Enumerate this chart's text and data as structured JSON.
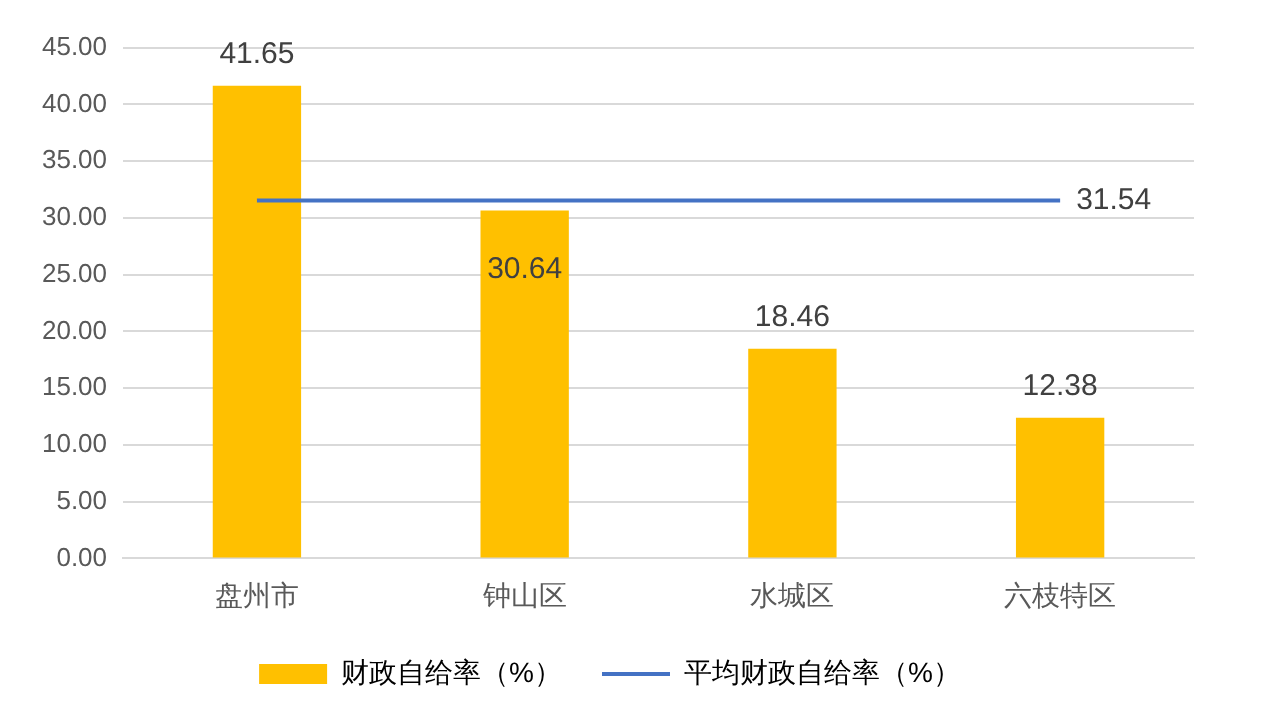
{
  "chart_data": {
    "type": "bar",
    "categories": [
      "盘州市",
      "钟山区",
      "水城区",
      "六枝特区"
    ],
    "series": [
      {
        "name": "财政自给率（%）",
        "color": "#ffc000",
        "values": [
          41.65,
          30.64,
          18.46,
          12.38
        ],
        "value_labels": [
          "41.65",
          "30.64",
          "18.46",
          "12.38"
        ]
      },
      {
        "name": "平均财政自给率（%）",
        "type": "line",
        "color": "#4472c4",
        "values": [
          31.54,
          31.54,
          31.54,
          31.54
        ],
        "value_labels": [
          null,
          null,
          null,
          "31.54"
        ]
      }
    ],
    "ylim": [
      0,
      45
    ],
    "yticks": [
      {
        "value": 0,
        "label": "0.00"
      },
      {
        "value": 5,
        "label": "5.00"
      },
      {
        "value": 10,
        "label": "10.00"
      },
      {
        "value": 15,
        "label": "15.00"
      },
      {
        "value": 20,
        "label": "20.00"
      },
      {
        "value": 25,
        "label": "25.00"
      },
      {
        "value": 30,
        "label": "30.00"
      },
      {
        "value": 35,
        "label": "35.00"
      },
      {
        "value": 40,
        "label": "40.00"
      },
      {
        "value": 45,
        "label": "45.00"
      }
    ],
    "grid": "y",
    "legend": "bottom",
    "marker": "none"
  }
}
